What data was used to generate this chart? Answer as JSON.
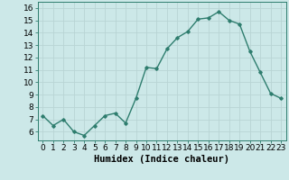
{
  "x": [
    0,
    1,
    2,
    3,
    4,
    5,
    6,
    7,
    8,
    9,
    10,
    11,
    12,
    13,
    14,
    15,
    16,
    17,
    18,
    19,
    20,
    21,
    22,
    23
  ],
  "y": [
    7.3,
    6.5,
    7.0,
    6.0,
    5.7,
    6.5,
    7.3,
    7.5,
    6.7,
    8.7,
    11.2,
    11.1,
    12.7,
    13.6,
    14.1,
    15.1,
    15.2,
    15.7,
    15.0,
    14.7,
    12.5,
    10.8,
    9.1,
    8.7
  ],
  "xlabel": "Humidex (Indice chaleur)",
  "xlim": [
    -0.5,
    23.5
  ],
  "ylim": [
    5.3,
    16.5
  ],
  "yticks": [
    6,
    7,
    8,
    9,
    10,
    11,
    12,
    13,
    14,
    15,
    16
  ],
  "xticks": [
    0,
    1,
    2,
    3,
    4,
    5,
    6,
    7,
    8,
    9,
    10,
    11,
    12,
    13,
    14,
    15,
    16,
    17,
    18,
    19,
    20,
    21,
    22,
    23
  ],
  "line_color": "#2e7d6e",
  "marker": "D",
  "marker_size": 1.8,
  "bg_color": "#cce8e8",
  "grid_color": "#b8d4d4",
  "xlabel_fontsize": 7.5,
  "tick_fontsize": 6.5,
  "line_width": 1.0
}
